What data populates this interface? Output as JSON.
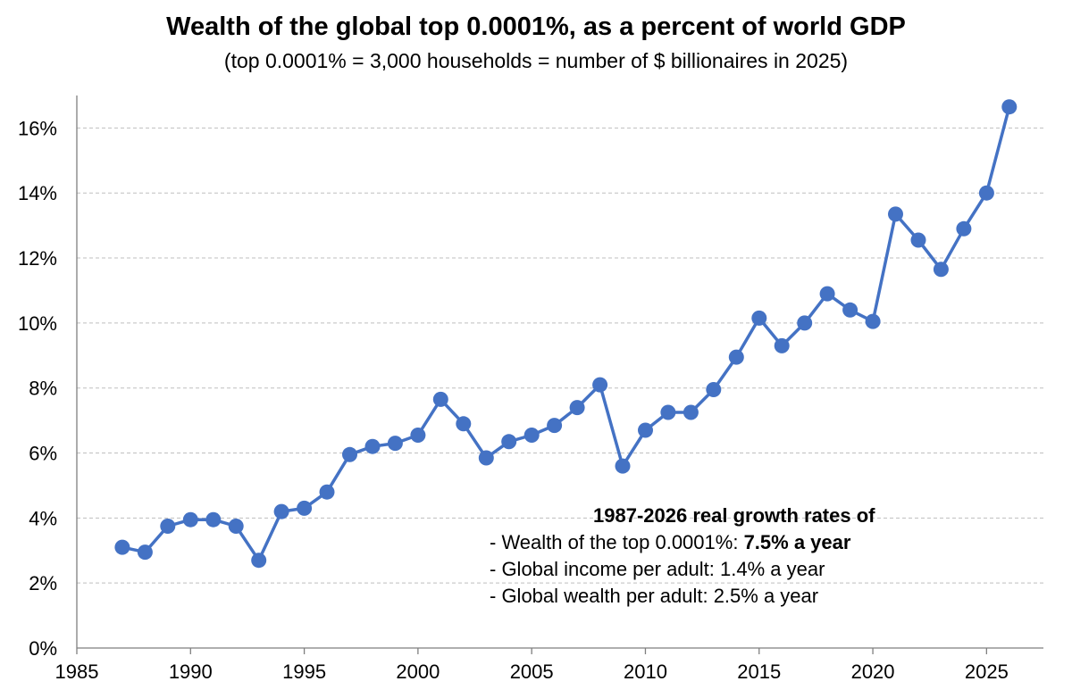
{
  "title": "Wealth of the global top 0.0001%, as a percent of world GDP",
  "subtitle": "(top 0.0001% = 3,000 households = number of $ billionaires in 2025)",
  "annotation": {
    "heading": "1987-2026 real growth rates of",
    "line1_prefix": "- Wealth of the top 0.0001%: ",
    "line1_value": "7.5% a year",
    "line2": "- Global income per adult: 1.4% a year",
    "line3": "- Global wealth per adult: 2.5% a year"
  },
  "colors": {
    "series": "#4472C4",
    "grid": "#BFBFBF",
    "axis": "#7F7F7F"
  },
  "chart_data": {
    "type": "line",
    "title": "Wealth of the global top 0.0001%, as a percent of world GDP",
    "subtitle": "(top 0.0001% = 3,000 households = number of $ billionaires in 2025)",
    "xlabel": "",
    "ylabel": "",
    "xlim": [
      1985,
      2027.5
    ],
    "ylim": [
      0,
      17
    ],
    "x_ticks": [
      1985,
      1990,
      1995,
      2000,
      2005,
      2010,
      2015,
      2020,
      2025
    ],
    "y_ticks": [
      0,
      2,
      4,
      6,
      8,
      10,
      12,
      14,
      16
    ],
    "y_tick_suffix": "%",
    "grid": true,
    "legend": "none",
    "markers": "circle",
    "series": [
      {
        "x": [
          1987,
          1988,
          1989,
          1990,
          1991,
          1992,
          1993,
          1994,
          1995,
          1996,
          1997,
          1998,
          1999,
          2000,
          2001,
          2002,
          2003,
          2004,
          2005,
          2006,
          2007,
          2008,
          2009,
          2010,
          2011,
          2012,
          2013,
          2014,
          2015,
          2016,
          2017,
          2018,
          2019,
          2020,
          2021,
          2022,
          2023,
          2024,
          2025,
          2026
        ],
        "values": [
          3.1,
          2.95,
          3.75,
          3.95,
          3.95,
          3.75,
          2.7,
          4.2,
          4.3,
          4.8,
          5.95,
          6.2,
          6.3,
          6.55,
          7.65,
          6.9,
          5.85,
          6.35,
          6.55,
          6.85,
          7.4,
          8.1,
          5.6,
          6.7,
          7.25,
          7.25,
          7.95,
          8.95,
          10.15,
          9.3,
          10.0,
          10.9,
          10.4,
          10.05,
          13.35,
          12.55,
          11.65,
          12.9,
          14.0,
          16.65
        ]
      }
    ]
  }
}
